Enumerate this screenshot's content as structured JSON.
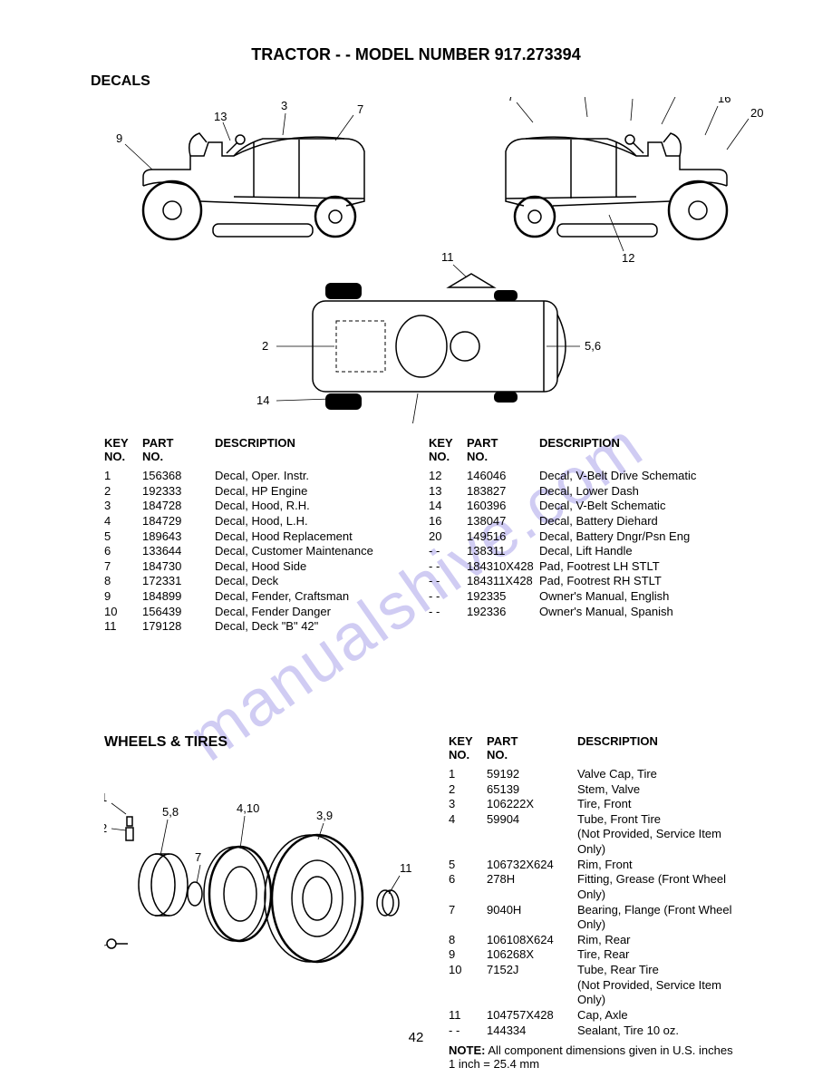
{
  "header": {
    "title": "TRACTOR - - MODEL NUMBER  917.273394",
    "section": "DECALS"
  },
  "decals": {
    "head_key": "KEY\nNO.",
    "head_part": "PART\nNO.",
    "head_desc": "DESCRIPTION",
    "left": [
      {
        "k": "1",
        "p": "156368",
        "d": "Decal, Oper. Instr."
      },
      {
        "k": "2",
        "p": "192333",
        "d": "Decal, HP Engine"
      },
      {
        "k": "3",
        "p": "184728",
        "d": "Decal, Hood, R.H."
      },
      {
        "k": "4",
        "p": "184729",
        "d": "Decal, Hood, L.H."
      },
      {
        "k": "5",
        "p": "189643",
        "d": "Decal, Hood Replacement"
      },
      {
        "k": "6",
        "p": "133644",
        "d": "Decal, Customer Maintenance"
      },
      {
        "k": "7",
        "p": "184730",
        "d": "Decal, Hood Side"
      },
      {
        "k": "8",
        "p": "172331",
        "d": "Decal, Deck"
      },
      {
        "k": "9",
        "p": "184899",
        "d": "Decal, Fender, Craftsman"
      },
      {
        "k": "10",
        "p": "156439",
        "d": "Decal, Fender Danger"
      },
      {
        "k": "11",
        "p": "179128",
        "d": "Decal, Deck \"B\" 42\""
      }
    ],
    "right": [
      {
        "k": "12",
        "p": "146046",
        "d": "Decal, V-Belt Drive Schematic"
      },
      {
        "k": "13",
        "p": "183827",
        "d": "Decal, Lower Dash"
      },
      {
        "k": "14",
        "p": "160396",
        "d": "Decal, V-Belt Schematic"
      },
      {
        "k": "16",
        "p": "138047",
        "d": "Decal, Battery Diehard"
      },
      {
        "k": "20",
        "p": "149516",
        "d": "Decal, Battery Dngr/Psn Eng"
      },
      {
        "k": "- -",
        "p": "138311",
        "d": "Decal, Lift Handle"
      },
      {
        "k": "- -",
        "p": "184310X428",
        "d": "Pad, Footrest LH STLT"
      },
      {
        "k": "- -",
        "p": "184311X428",
        "d": "Pad, Footrest RH STLT"
      },
      {
        "k": "- -",
        "p": "192335",
        "d": "Owner's Manual, English"
      },
      {
        "k": "- -",
        "p": "192336",
        "d": "Owner's Manual, Spanish"
      }
    ]
  },
  "wheels": {
    "title": "WHEELS & TIRES",
    "head_key": "KEY\nNO.",
    "head_part": "PART\nNO.",
    "head_desc": "DESCRIPTION",
    "rows": [
      {
        "k": "1",
        "p": "59192",
        "d": "Valve Cap, Tire"
      },
      {
        "k": "2",
        "p": "65139",
        "d": "Stem, Valve"
      },
      {
        "k": "3",
        "p": "106222X",
        "d": "Tire, Front"
      },
      {
        "k": "4",
        "p": "59904",
        "d": "Tube, Front Tire"
      },
      {
        "k": "",
        "p": "",
        "d": "(Not Provided, Service Item Only)"
      },
      {
        "k": "5",
        "p": "106732X624",
        "d": "Rim, Front"
      },
      {
        "k": "6",
        "p": "278H",
        "d": "Fitting, Grease (Front Wheel Only)"
      },
      {
        "k": "7",
        "p": "9040H",
        "d": "Bearing, Flange (Front Wheel"
      },
      {
        "k": "",
        "p": "",
        "d": "Only)"
      },
      {
        "k": "8",
        "p": "106108X624",
        "d": "Rim, Rear"
      },
      {
        "k": "9",
        "p": "106268X",
        "d": "Tire, Rear"
      },
      {
        "k": "10",
        "p": "7152J",
        "d": "Tube, Rear Tire"
      },
      {
        "k": "",
        "p": "",
        "d": "(Not Provided, Service Item Only)"
      },
      {
        "k": "11",
        "p": "104757X428",
        "d": "Cap, Axle"
      },
      {
        "k": "- -",
        "p": "144334",
        "d": "Sealant, Tire 10 oz."
      }
    ],
    "note_label": "NOTE:",
    "note_text": " All component dimensions given in U.S. inches 1 inch = 25.4 mm"
  },
  "watermark": "manualshive.com",
  "page_number": "42",
  "colors": {
    "text": "#000000",
    "bg": "#ffffff",
    "watermark": "rgba(120,110,220,0.35)"
  }
}
